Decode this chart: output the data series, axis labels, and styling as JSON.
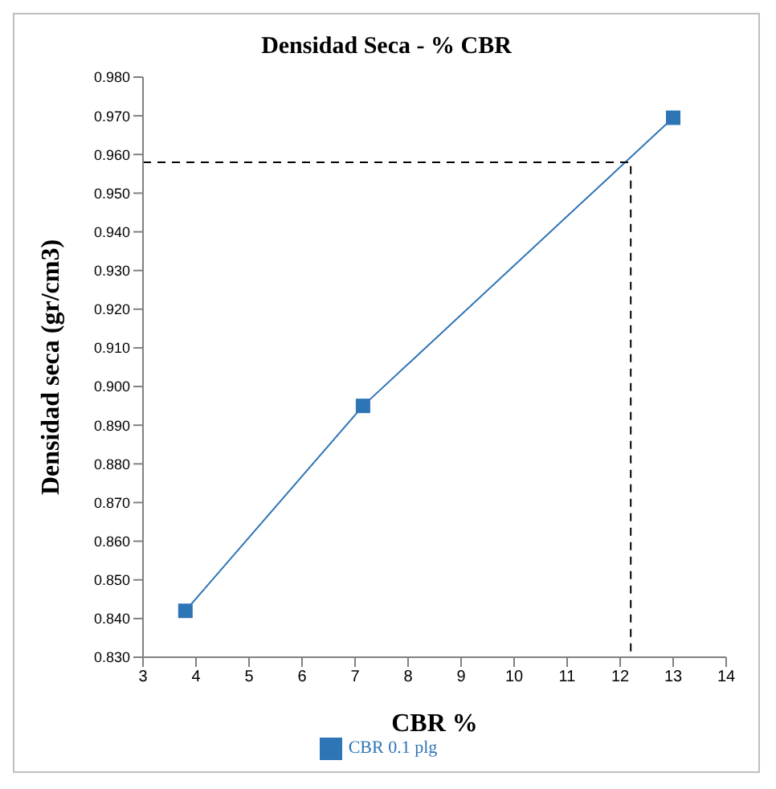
{
  "chart_data": {
    "type": "line",
    "title": "Densidad Seca - % CBR",
    "xlabel": "CBR %",
    "ylabel": "Densidad seca (gr/cm3)",
    "xlim": [
      3,
      14
    ],
    "xticks": [
      3,
      4,
      5,
      6,
      7,
      8,
      9,
      10,
      11,
      12,
      13,
      14
    ],
    "ylim": [
      0.83,
      0.98
    ],
    "yticks": [
      {
        "value": 0.83,
        "label": "0.830"
      },
      {
        "value": 0.84,
        "label": "0.840"
      },
      {
        "value": 0.85,
        "label": "0.850"
      },
      {
        "value": 0.86,
        "label": "0.860"
      },
      {
        "value": 0.87,
        "label": "0.870"
      },
      {
        "value": 0.88,
        "label": "0.880"
      },
      {
        "value": 0.89,
        "label": "0.890"
      },
      {
        "value": 0.9,
        "label": "0.900"
      },
      {
        "value": 0.91,
        "label": "0.910"
      },
      {
        "value": 0.92,
        "label": "0.920"
      },
      {
        "value": 0.93,
        "label": "0.930"
      },
      {
        "value": 0.94,
        "label": "0.940"
      },
      {
        "value": 0.95,
        "label": "0.950"
      },
      {
        "value": 0.96,
        "label": "0.960"
      },
      {
        "value": 0.97,
        "label": "0.970"
      },
      {
        "value": 0.98,
        "label": "0.980"
      }
    ],
    "grid": false,
    "legend": "bottom",
    "series": [
      {
        "name": "CBR 0.1 plg",
        "color": "#2e75b6",
        "x": [
          3.8,
          7.15,
          13.0
        ],
        "values": [
          0.842,
          0.895,
          0.9695
        ],
        "marker": "square",
        "line_style": "solid"
      },
      {
        "color": "#000000",
        "x": [
          3,
          12.2,
          12.2
        ],
        "values": [
          0.958,
          0.958,
          0.83
        ],
        "marker": "none",
        "line_style": "dashed"
      }
    ]
  }
}
